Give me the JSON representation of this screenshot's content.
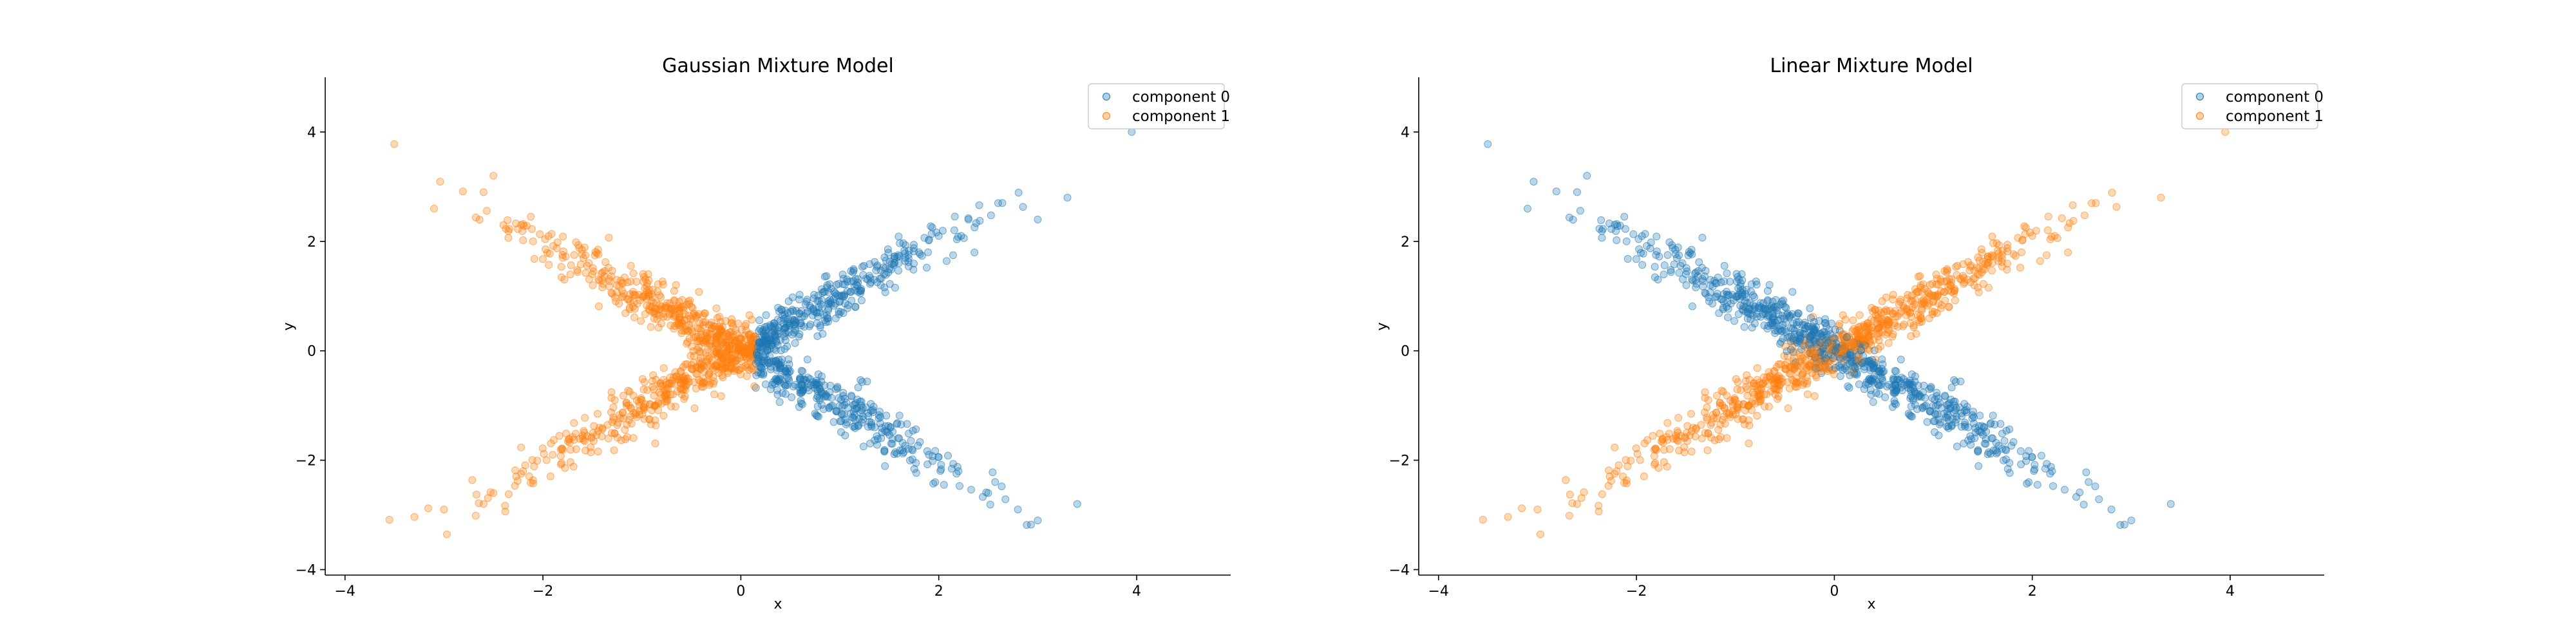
{
  "colors": {
    "component_0": "#1f77b4",
    "component_1": "#ff7f0e"
  },
  "chart_data": [
    {
      "type": "scatter",
      "title": "Gaussian Mixture Model",
      "xlabel": "x",
      "ylabel": "y",
      "xlim": [
        -4.2,
        4.95
      ],
      "ylim": [
        -4.1,
        5.0
      ],
      "xticks": [
        -4,
        -2,
        0,
        2,
        4
      ],
      "yticks": [
        -4,
        -2,
        0,
        2,
        4
      ],
      "xtick_labels": [
        "−4",
        "−2",
        "0",
        "2",
        "4"
      ],
      "ytick_labels": [
        "−4",
        "−2",
        "0",
        "2",
        "4"
      ],
      "grid": false,
      "legend": {
        "placement": "top-right",
        "entries": [
          "component 0",
          "component 1"
        ]
      },
      "assignment": "side",
      "series": [
        {
          "name": "component 0",
          "color": "#1f77b4",
          "points": [
            [
              0.4,
              0.2
            ],
            [
              0.6,
              0.5
            ],
            [
              0.8,
              0.7
            ],
            [
              1.0,
              0.9
            ],
            [
              1.2,
              1.1
            ],
            [
              1.5,
              1.5
            ],
            [
              1.8,
              1.8
            ],
            [
              2.0,
              2.1
            ],
            [
              2.3,
              2.4
            ],
            [
              2.6,
              2.7
            ],
            [
              3.0,
              2.4
            ],
            [
              3.3,
              2.8
            ],
            [
              0.4,
              -0.3
            ],
            [
              0.6,
              -0.5
            ],
            [
              0.8,
              -0.7
            ],
            [
              1.0,
              -1.0
            ],
            [
              1.3,
              -1.3
            ],
            [
              1.6,
              -1.6
            ],
            [
              1.9,
              -1.9
            ],
            [
              2.2,
              -2.2
            ],
            [
              2.5,
              -2.6
            ],
            [
              2.8,
              -2.9
            ],
            [
              3.0,
              -3.1
            ],
            [
              3.4,
              -2.8
            ],
            [
              3.95,
              4.0
            ]
          ]
        },
        {
          "name": "component 1",
          "color": "#ff7f0e",
          "points": [
            [
              -0.4,
              0.3
            ],
            [
              -0.6,
              0.5
            ],
            [
              -0.9,
              0.8
            ],
            [
              -1.2,
              1.1
            ],
            [
              -1.5,
              1.4
            ],
            [
              -1.8,
              1.7
            ],
            [
              -2.1,
              2.0
            ],
            [
              -2.4,
              2.3
            ],
            [
              -2.6,
              2.9
            ],
            [
              -2.5,
              3.2
            ],
            [
              -3.1,
              2.6
            ],
            [
              -0.4,
              -0.3
            ],
            [
              -0.7,
              -0.6
            ],
            [
              -1.0,
              -0.9
            ],
            [
              -1.3,
              -1.3
            ],
            [
              -1.6,
              -1.6
            ],
            [
              -1.9,
              -1.9
            ],
            [
              -2.2,
              -2.2
            ],
            [
              -2.5,
              -2.6
            ],
            [
              -2.6,
              -2.8
            ],
            [
              -3.0,
              -2.9
            ]
          ]
        }
      ]
    },
    {
      "type": "scatter",
      "title": "Linear Mixture Model",
      "xlabel": "x",
      "ylabel": "y",
      "xlim": [
        -4.2,
        4.95
      ],
      "ylim": [
        -4.1,
        5.0
      ],
      "xticks": [
        -4,
        -2,
        0,
        2,
        4
      ],
      "yticks": [
        -4,
        -2,
        0,
        2,
        4
      ],
      "xtick_labels": [
        "−4",
        "−2",
        "0",
        "2",
        "4"
      ],
      "ytick_labels": [
        "−4",
        "−2",
        "0",
        "2",
        "4"
      ],
      "grid": false,
      "legend": {
        "placement": "top-right",
        "entries": [
          "component 0",
          "component 1"
        ]
      },
      "assignment": "line",
      "series": [
        {
          "name": "component 0",
          "color": "#1f77b4",
          "points": [
            [
              -0.4,
              0.3
            ],
            [
              -0.9,
              0.8
            ],
            [
              -1.5,
              1.4
            ],
            [
              -2.1,
              2.0
            ],
            [
              -2.6,
              2.9
            ],
            [
              -2.5,
              3.2
            ],
            [
              -3.1,
              2.6
            ],
            [
              0.4,
              -0.3
            ],
            [
              1.0,
              -1.0
            ],
            [
              1.6,
              -1.6
            ],
            [
              2.2,
              -2.2
            ],
            [
              2.8,
              -2.9
            ],
            [
              3.0,
              -3.1
            ],
            [
              3.4,
              -2.8
            ]
          ]
        },
        {
          "name": "component 1",
          "color": "#ff7f0e",
          "points": [
            [
              0.4,
              0.2
            ],
            [
              1.0,
              0.9
            ],
            [
              1.5,
              1.5
            ],
            [
              2.0,
              2.1
            ],
            [
              2.6,
              2.7
            ],
            [
              3.3,
              2.8
            ],
            [
              -0.4,
              -0.3
            ],
            [
              -1.0,
              -0.9
            ],
            [
              -1.6,
              -1.6
            ],
            [
              -2.2,
              -2.2
            ],
            [
              -2.6,
              -2.8
            ],
            [
              -3.0,
              -2.9
            ],
            [
              3.95,
              4.0
            ]
          ]
        }
      ]
    }
  ]
}
